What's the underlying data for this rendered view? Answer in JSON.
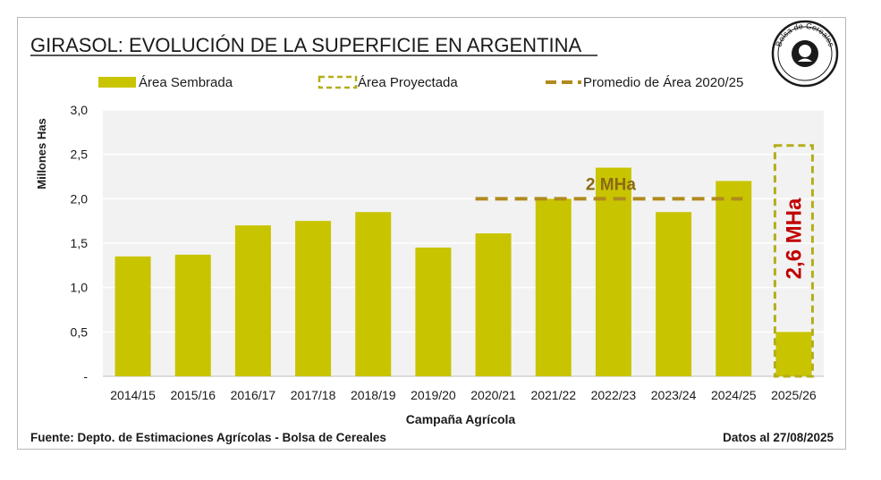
{
  "colors": {
    "bar": "#c9c400",
    "projected_border": "#b3ae1a",
    "average_line": "#b08a1e",
    "average_label": "#8b6a14",
    "projected_label": "#c00000",
    "plot_bg": "#f2f2f2",
    "grid": "#ffffff",
    "text": "#1a1a1a",
    "title": "#1a1a1a"
  },
  "logo": {
    "icon": "bolsa-de-cereales-seal-icon",
    "text": "Bolsa de Cereales"
  },
  "chart_data": {
    "type": "bar",
    "title": "GIRASOL: EVOLUCIÓN DE LA SUPERFICIE EN ARGENTINA",
    "xlabel": "Campaña Agrícola",
    "ylabel": "Millones Has",
    "ylim": [
      0,
      3
    ],
    "y_ticks": [
      {
        "value": 0,
        "label": "-"
      },
      {
        "value": 0.5,
        "label": "0,5"
      },
      {
        "value": 1.0,
        "label": "1,0"
      },
      {
        "value": 1.5,
        "label": "1,5"
      },
      {
        "value": 2.0,
        "label": "2,0"
      },
      {
        "value": 2.5,
        "label": "2,5"
      },
      {
        "value": 3.0,
        "label": "3,0"
      }
    ],
    "grid": true,
    "legend_position": "top",
    "categories": [
      "2014/15",
      "2015/16",
      "2016/17",
      "2017/18",
      "2018/19",
      "2019/20",
      "2020/21",
      "2021/22",
      "2022/23",
      "2023/24",
      "2024/25",
      "2025/26"
    ],
    "series": [
      {
        "name": "Área Sembrada",
        "kind": "bar",
        "values": [
          1.35,
          1.37,
          1.7,
          1.75,
          1.85,
          1.45,
          1.61,
          2.0,
          2.35,
          1.85,
          2.2,
          0.5
        ]
      },
      {
        "name": "Área Proyectada",
        "kind": "dashed-outline-bar",
        "values": [
          null,
          null,
          null,
          null,
          null,
          null,
          null,
          null,
          null,
          null,
          null,
          2.6
        ]
      },
      {
        "name": "Promedio de Área 2020/25",
        "kind": "dashed-line",
        "values": [
          null,
          null,
          null,
          null,
          null,
          null,
          2.0,
          2.0,
          2.0,
          2.0,
          2.0,
          null
        ]
      }
    ],
    "annotations": [
      {
        "text": "2 MHa",
        "category": "2022/23",
        "value": 2.0
      },
      {
        "text": "2,6 MHa",
        "category": "2025/26",
        "value": 1.55
      }
    ]
  },
  "footer": {
    "source": "Fuente: Depto. de Estimaciones Agrícolas - Bolsa de Cereales",
    "date": "Datos al 27/08/2025"
  }
}
